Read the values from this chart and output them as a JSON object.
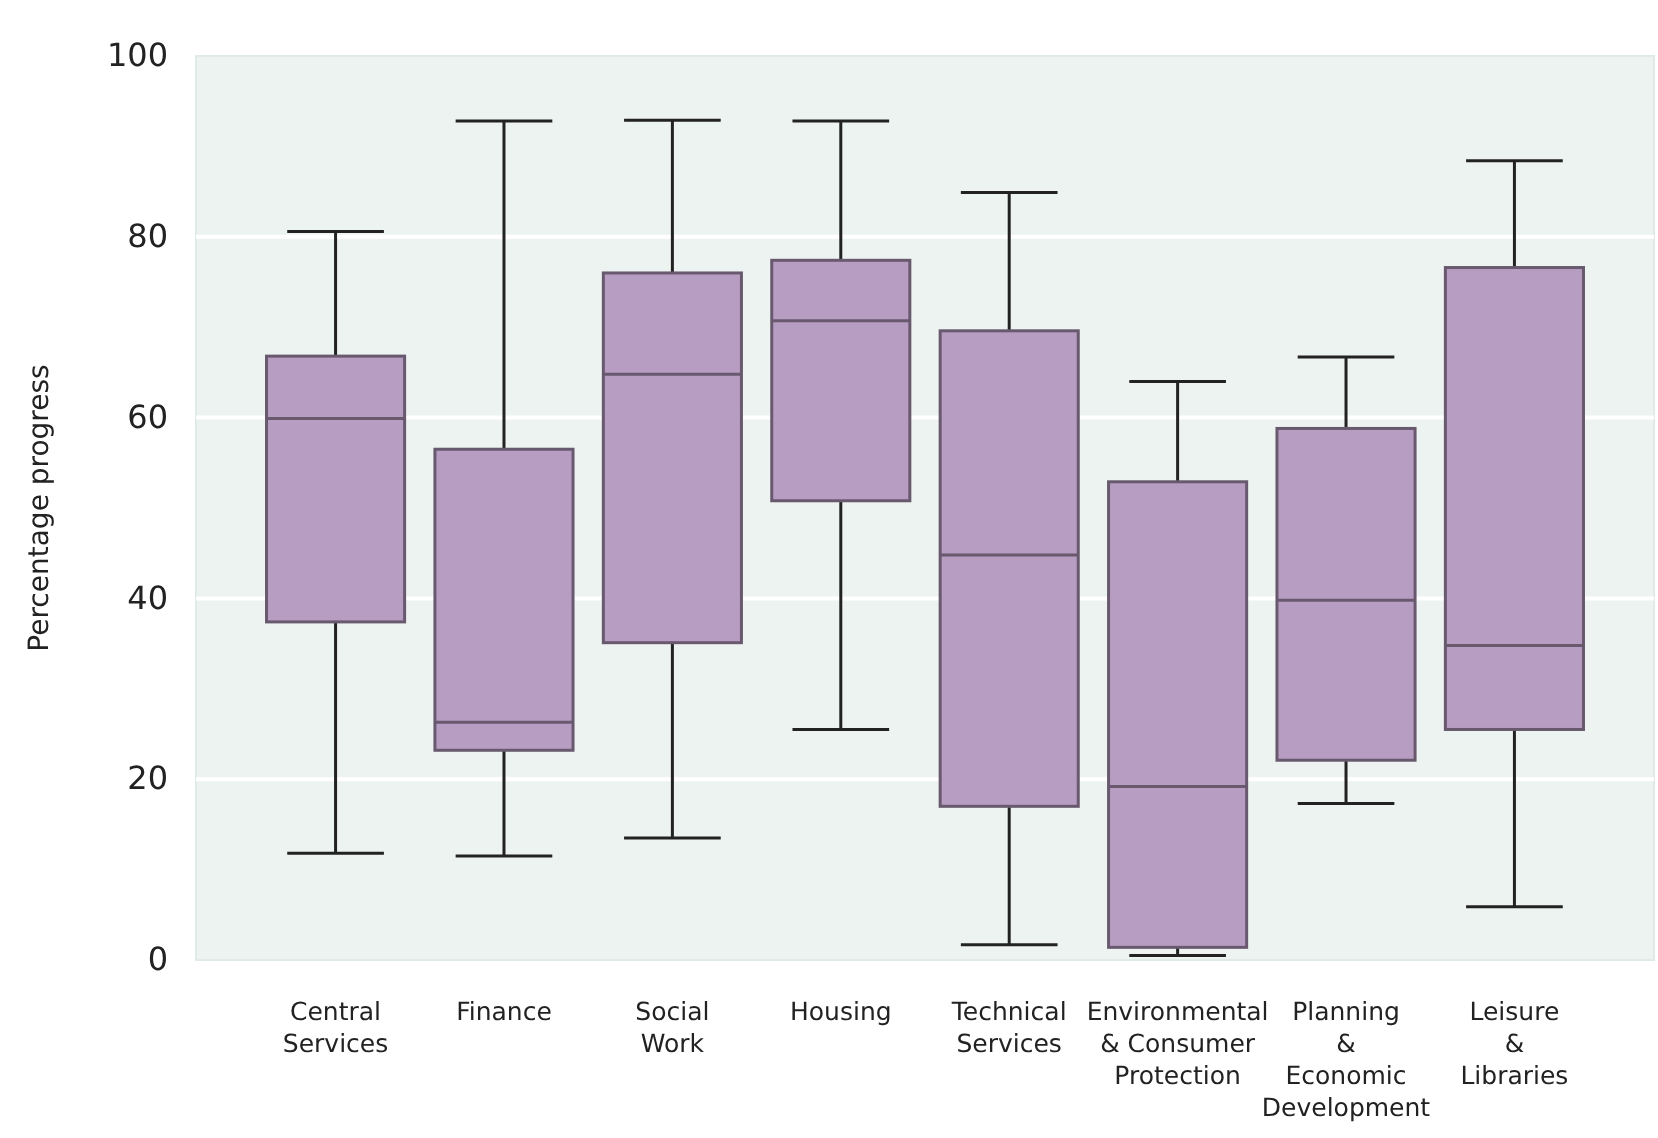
{
  "chart_data": {
    "type": "box",
    "ylabel": "Percentage progress",
    "categories": [
      "Central\nServices",
      "Finance",
      "Social\nWork",
      "Housing",
      "Technical\nServices",
      "Environmental\n& Consumer\nProtection",
      "Planning\n&\nEconomic\nDevelopment",
      "Leisure\n&\nLibraries"
    ],
    "boxes": [
      {
        "low": 11.8,
        "q1": 37.4,
        "median": 59.9,
        "q3": 66.8,
        "high": 80.6
      },
      {
        "low": 11.5,
        "q1": 23.2,
        "median": 26.3,
        "q3": 56.5,
        "high": 92.8
      },
      {
        "low": 13.5,
        "q1": 35.1,
        "median": 64.8,
        "q3": 76.0,
        "high": 92.9
      },
      {
        "low": 25.5,
        "q1": 50.8,
        "median": 70.7,
        "q3": 77.4,
        "high": 92.8
      },
      {
        "low": 1.7,
        "q1": 17.0,
        "median": 44.8,
        "q3": 69.6,
        "high": 84.9
      },
      {
        "low": 0.5,
        "q1": 1.4,
        "median": 19.2,
        "q3": 52.9,
        "high": 64.0
      },
      {
        "low": 17.3,
        "q1": 22.1,
        "median": 39.8,
        "q3": 58.8,
        "high": 66.7
      },
      {
        "low": 5.9,
        "q1": 25.5,
        "median": 34.8,
        "q3": 76.6,
        "high": 88.4
      }
    ],
    "color": "#b89dc3",
    "ylim": [
      0,
      100
    ],
    "yticks": [
      0,
      20,
      40,
      60,
      80,
      100
    ],
    "grid": "y"
  }
}
